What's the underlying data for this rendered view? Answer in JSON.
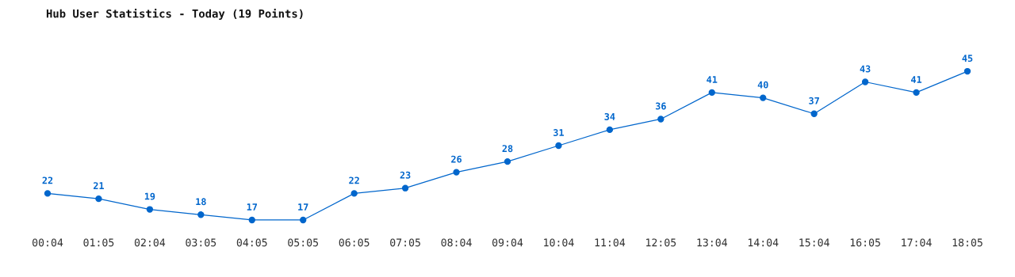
{
  "chart_data": {
    "type": "line",
    "title": "Hub User Statistics - Today (19 Points)",
    "categories": [
      "00:04",
      "01:05",
      "02:04",
      "03:05",
      "04:05",
      "05:05",
      "06:05",
      "07:05",
      "08:04",
      "09:04",
      "10:04",
      "11:04",
      "12:05",
      "13:04",
      "14:04",
      "15:04",
      "16:05",
      "17:04",
      "18:05"
    ],
    "series": [
      {
        "color": "#0066cc",
        "values": [
          22,
          21,
          19,
          18,
          17,
          17,
          22,
          23,
          26,
          28,
          31,
          34,
          36,
          41,
          40,
          37,
          43,
          41,
          45
        ]
      }
    ],
    "data_labels": true,
    "marker": "circle",
    "grid": false,
    "legend": false,
    "tick_labels": "x"
  }
}
